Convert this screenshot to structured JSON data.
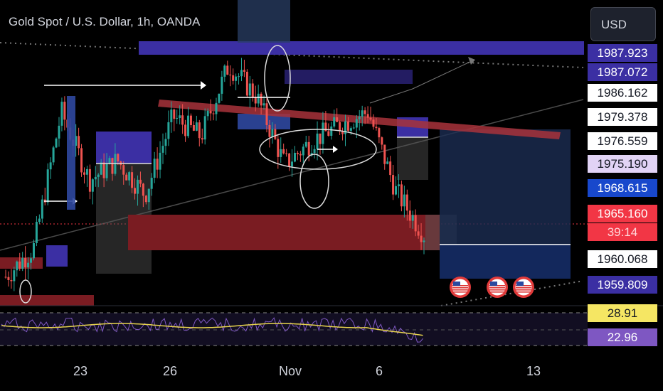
{
  "header": {
    "title": "Gold Spot / U.S. Dollar, 1h, OANDA",
    "currency_button": "USD"
  },
  "colors": {
    "background": "#000000",
    "candle_up": "#26a69a",
    "candle_down": "#ef5350",
    "supply_zone": "#3b2fa3",
    "demand_zone": "#7a1c22",
    "target_zone": "#13285c",
    "rsi_line": "#e8d44d",
    "rsi_last_tag": "#f5e663",
    "last_price_tag": "#f23645"
  },
  "icons": [
    "us-flag-event-icon",
    "us-flag-event-icon",
    "us-flag-event-icon"
  ],
  "price_labels": [
    {
      "text": "1987.923",
      "kind": "supply"
    },
    {
      "text": "1987.072",
      "kind": "supply"
    },
    {
      "text": "1986.162",
      "kind": "plain"
    },
    {
      "text": "1979.378",
      "kind": "plain"
    },
    {
      "text": "1976.559",
      "kind": "plain"
    },
    {
      "text": "1975.190",
      "kind": "light"
    },
    {
      "text": "1968.615",
      "kind": "blue"
    },
    {
      "text": "1965.160",
      "kind": "last"
    },
    {
      "text": "39:14",
      "kind": "countdown"
    },
    {
      "text": "1960.068",
      "kind": "plain"
    },
    {
      "text": "1959.809",
      "kind": "supply"
    }
  ],
  "rsi_labels": [
    {
      "text": "28.91",
      "kind": "rsi-yellow"
    },
    {
      "text": "22.96",
      "kind": "rsi-purple"
    }
  ],
  "time_axis": [
    "23",
    "26",
    "Nov",
    "6",
    "13"
  ],
  "chart_data": {
    "type": "candlestick",
    "symbol": "XAUUSD",
    "interval": "1h",
    "last_price": 1965.16,
    "series": [
      {
        "name": "close_path",
        "approx_points": [
          {
            "t": "Oct 20",
            "close": 1959.9
          },
          {
            "t": "Oct 21",
            "close": 1963.5
          },
          {
            "t": "Oct 22",
            "close": 1980.6
          },
          {
            "t": "Oct 23",
            "close": 1972.0
          },
          {
            "t": "Oct 24",
            "close": 1974.5
          },
          {
            "t": "Oct 25",
            "close": 1970.2
          },
          {
            "t": "Oct 26",
            "close": 1980.0
          },
          {
            "t": "Oct 27",
            "close": 1977.5
          },
          {
            "t": "Oct 30",
            "close": 1986.5
          },
          {
            "t": "Oct 31",
            "close": 1982.5
          },
          {
            "t": "Nov 1",
            "close": 1974.0
          },
          {
            "t": "Nov 2",
            "close": 1977.0
          },
          {
            "t": "Nov 3",
            "close": 1979.0
          },
          {
            "t": "Nov 6",
            "close": 1980.6
          },
          {
            "t": "Nov 7",
            "close": 1970.6
          },
          {
            "t": "Nov 7 late",
            "close": 1965.2
          }
        ]
      }
    ],
    "zones": [
      {
        "name": "supply",
        "from": 1986.8,
        "to": 1988.6
      },
      {
        "name": "demand",
        "from": 1964.3,
        "to": 1966.0
      },
      {
        "name": "target",
        "from": 1959.8,
        "to": 1963.5
      }
    ],
    "rsi": {
      "levels": [
        28.91,
        22.96
      ]
    },
    "grid": false
  }
}
